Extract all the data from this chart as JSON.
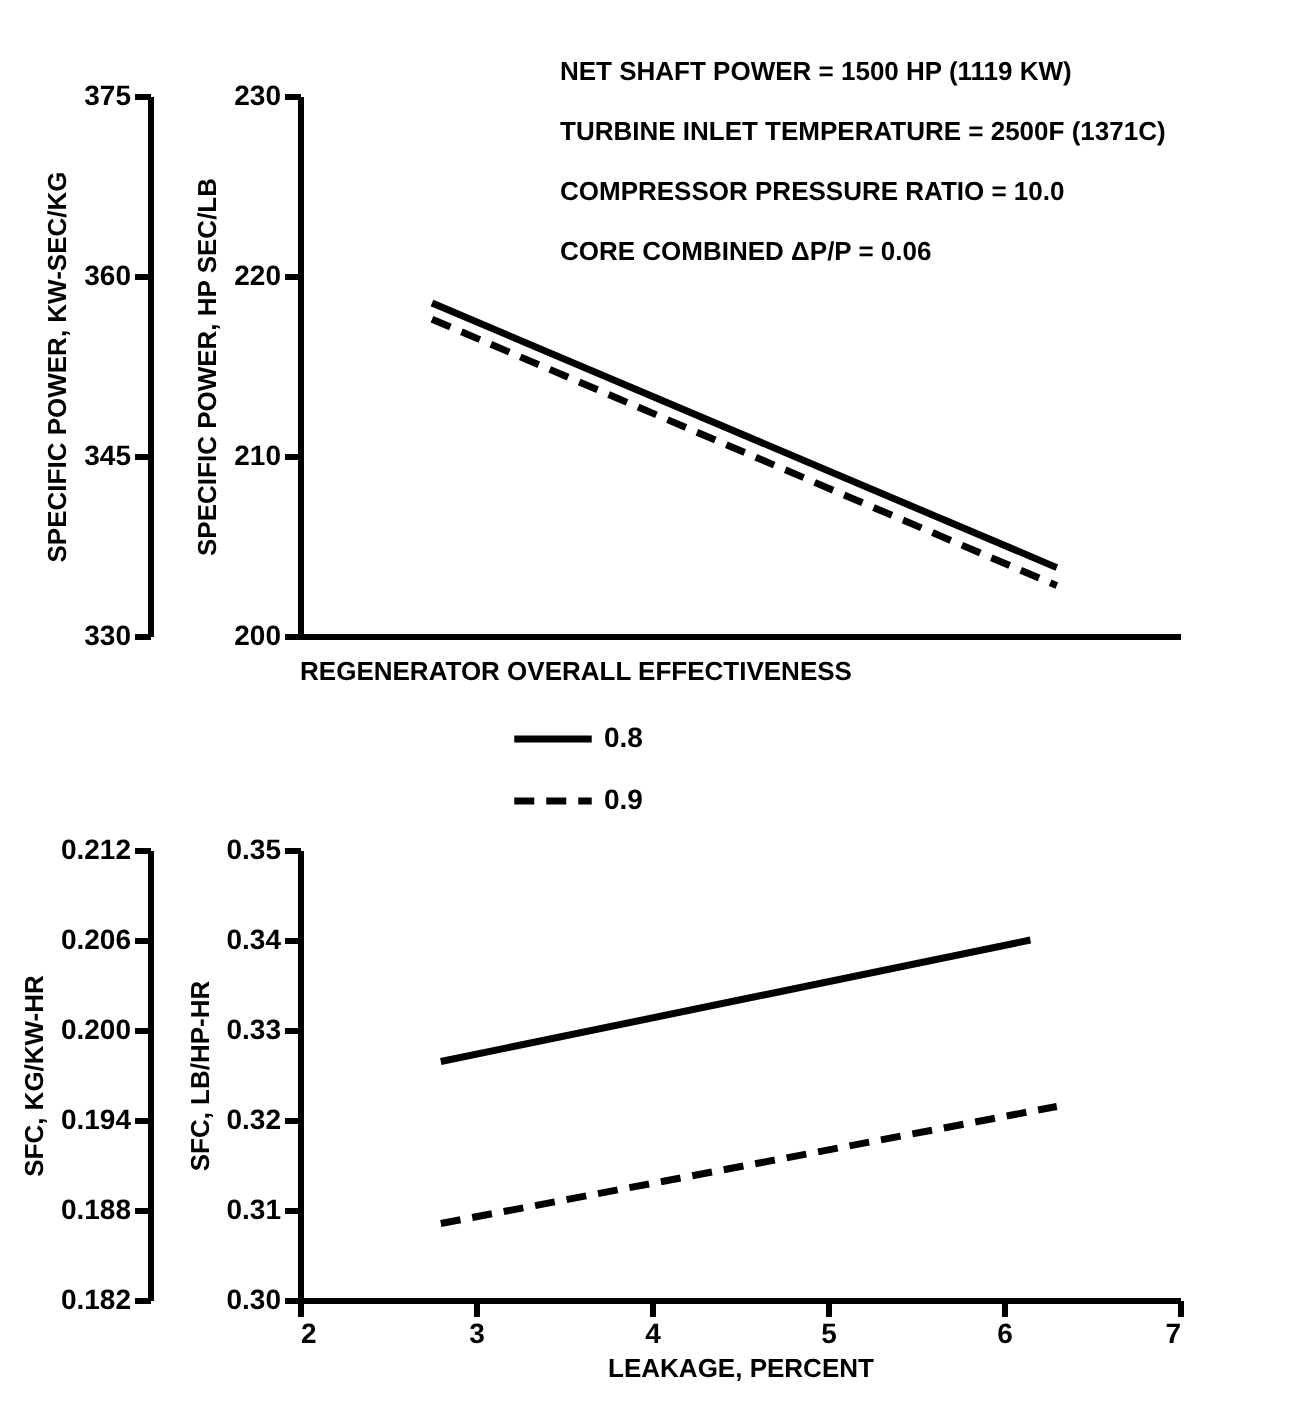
{
  "chart_data": [
    {
      "type": "line",
      "xlim": [
        2,
        7
      ],
      "ylim": [
        200,
        230
      ],
      "yticks": [
        200,
        210,
        220,
        230
      ],
      "ylabel": "SPECIFIC POWER, HP SEC/LB",
      "y2lim": [
        330,
        375
      ],
      "y2ticks": [
        330,
        345,
        360,
        375
      ],
      "y2label": "SPECIFIC POWER, KW-SEC/KG",
      "tick_labels": "y",
      "grid": false,
      "legend": "bottom",
      "legend_title": "REGENERATOR OVERALL EFFECTIVENESS",
      "annotations": [
        "NET SHAFT POWER = 1500 HP (1119 KW)",
        "TURBINE INLET TEMPERATURE = 2500F (1371C)",
        "COMPRESSOR PRESSURE RATIO = 10.0",
        "CORE COMBINED ΔP/P = 0.06"
      ],
      "series": [
        {
          "name": "0.8",
          "color": "#000000",
          "line_style": "solid",
          "x": [
            2.75,
            6.3
          ],
          "values": [
            218.5,
            203.8
          ]
        },
        {
          "name": "0.9",
          "color": "#000000",
          "line_style": "dashed",
          "x": [
            2.75,
            6.3
          ],
          "values": [
            217.6,
            202.8
          ]
        }
      ]
    },
    {
      "type": "line",
      "xlim": [
        2,
        7
      ],
      "xticks": [
        2,
        3,
        4,
        5,
        6,
        7
      ],
      "xlabel": "LEAKAGE, PERCENT",
      "ylim": [
        0.3,
        0.35
      ],
      "yticks": [
        {
          "value": 0.3,
          "label": "0.30"
        },
        0.31,
        0.32,
        0.33,
        0.34,
        0.35
      ],
      "ylabel": "SFC, LB/HP-HR",
      "y2lim": [
        0.182,
        0.212
      ],
      "y2ticks": [
        0.182,
        0.188,
        0.194,
        {
          "value": 0.2,
          "label": "0.200"
        },
        0.206,
        0.212
      ],
      "y2label": "SFC, KG/KW-HR",
      "grid": false,
      "series": [
        {
          "name": "0.8",
          "color": "#000000",
          "line_style": "solid",
          "x": [
            2.8,
            6.15
          ],
          "values": [
            0.3265,
            0.34
          ]
        },
        {
          "name": "0.9",
          "color": "#000000",
          "line_style": "dashed",
          "x": [
            2.8,
            6.3
          ],
          "values": [
            0.3085,
            0.3215
          ]
        }
      ]
    }
  ]
}
